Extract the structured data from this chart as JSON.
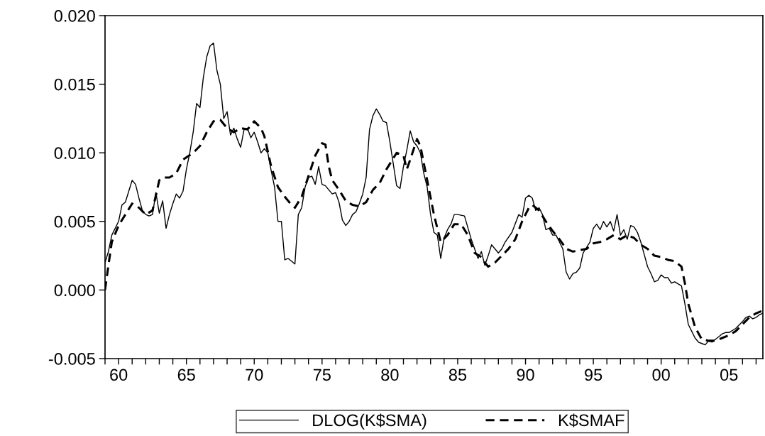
{
  "chart_data": {
    "type": "line",
    "xlim": [
      1959.0,
      2007.5
    ],
    "ylim": [
      -0.005,
      0.02
    ],
    "xticks": [
      {
        "value": 1959,
        "label": null
      },
      {
        "value": 1960,
        "label": "60"
      },
      {
        "value": 1961,
        "label": null
      },
      {
        "value": 1962,
        "label": null
      },
      {
        "value": 1963,
        "label": null
      },
      {
        "value": 1964,
        "label": null
      },
      {
        "value": 1965,
        "label": "65"
      },
      {
        "value": 1966,
        "label": null
      },
      {
        "value": 1967,
        "label": null
      },
      {
        "value": 1968,
        "label": null
      },
      {
        "value": 1969,
        "label": null
      },
      {
        "value": 1970,
        "label": "70"
      },
      {
        "value": 1971,
        "label": null
      },
      {
        "value": 1972,
        "label": null
      },
      {
        "value": 1973,
        "label": null
      },
      {
        "value": 1974,
        "label": null
      },
      {
        "value": 1975,
        "label": "75"
      },
      {
        "value": 1976,
        "label": null
      },
      {
        "value": 1977,
        "label": null
      },
      {
        "value": 1978,
        "label": null
      },
      {
        "value": 1979,
        "label": null
      },
      {
        "value": 1980,
        "label": "80"
      },
      {
        "value": 1981,
        "label": null
      },
      {
        "value": 1982,
        "label": null
      },
      {
        "value": 1983,
        "label": null
      },
      {
        "value": 1984,
        "label": null
      },
      {
        "value": 1985,
        "label": "85"
      },
      {
        "value": 1986,
        "label": null
      },
      {
        "value": 1987,
        "label": null
      },
      {
        "value": 1988,
        "label": null
      },
      {
        "value": 1989,
        "label": null
      },
      {
        "value": 1990,
        "label": "90"
      },
      {
        "value": 1991,
        "label": null
      },
      {
        "value": 1992,
        "label": null
      },
      {
        "value": 1993,
        "label": null
      },
      {
        "value": 1994,
        "label": null
      },
      {
        "value": 1995,
        "label": "95"
      },
      {
        "value": 1996,
        "label": null
      },
      {
        "value": 1997,
        "label": null
      },
      {
        "value": 1998,
        "label": null
      },
      {
        "value": 1999,
        "label": null
      },
      {
        "value": 2000,
        "label": "00"
      },
      {
        "value": 2001,
        "label": null
      },
      {
        "value": 2002,
        "label": null
      },
      {
        "value": 2003,
        "label": null
      },
      {
        "value": 2004,
        "label": null
      },
      {
        "value": 2005,
        "label": "05"
      },
      {
        "value": 2006,
        "label": null
      },
      {
        "value": 2007,
        "label": null
      }
    ],
    "yticks": [
      {
        "value": -0.005,
        "label": "-0.005"
      },
      {
        "value": 0.0,
        "label": "0.000"
      },
      {
        "value": 0.005,
        "label": "0.005"
      },
      {
        "value": 0.01,
        "label": "0.010"
      },
      {
        "value": 0.015,
        "label": "0.015"
      },
      {
        "value": 0.02,
        "label": "0.020"
      }
    ],
    "grid": false,
    "legend": "bottom",
    "marker": "none",
    "series": [
      {
        "name": "DLOG(K$SMA)",
        "color": "#000000",
        "line_style": "solid",
        "x": [
          1959.0,
          1959.25,
          1959.5,
          1960.0,
          1960.25,
          1960.5,
          1960.75,
          1961.0,
          1961.25,
          1961.5,
          1961.75,
          1962.0,
          1962.25,
          1962.5,
          1962.75,
          1963.0,
          1963.25,
          1963.5,
          1963.75,
          1964.0,
          1964.25,
          1964.5,
          1964.75,
          1965.0,
          1965.25,
          1965.5,
          1965.75,
          1966.0,
          1966.25,
          1966.5,
          1966.75,
          1967.0,
          1967.25,
          1967.5,
          1967.75,
          1968.0,
          1968.25,
          1968.5,
          1968.75,
          1969.0,
          1969.25,
          1969.5,
          1969.75,
          1970.0,
          1970.25,
          1970.5,
          1970.75,
          1971.0,
          1971.25,
          1971.5,
          1971.75,
          1972.0,
          1972.25,
          1972.5,
          1972.75,
          1973.0,
          1973.25,
          1973.5,
          1973.75,
          1974.0,
          1974.25,
          1974.5,
          1974.75,
          1975.0,
          1975.25,
          1975.5,
          1975.75,
          1976.0,
          1976.25,
          1976.5,
          1976.75,
          1977.0,
          1977.25,
          1977.5,
          1977.75,
          1978.0,
          1978.25,
          1978.5,
          1978.75,
          1979.0,
          1979.25,
          1979.5,
          1979.75,
          1980.0,
          1980.25,
          1980.5,
          1980.75,
          1981.0,
          1981.25,
          1981.5,
          1981.75,
          1982.0,
          1982.25,
          1982.5,
          1982.75,
          1983.0,
          1983.25,
          1983.5,
          1983.75,
          1984.0,
          1984.25,
          1984.5,
          1984.75,
          1985.0,
          1985.5,
          1986.0,
          1986.25,
          1986.5,
          1986.75,
          1987.0,
          1987.25,
          1987.5,
          1987.75,
          1988.0,
          1988.25,
          1988.5,
          1989.0,
          1989.5,
          1989.75,
          1990.0,
          1990.25,
          1990.5,
          1990.75,
          1991.0,
          1991.25,
          1991.5,
          1991.75,
          1992.0,
          1992.25,
          1992.5,
          1992.75,
          1993.0,
          1993.25,
          1993.5,
          1993.75,
          1994.0,
          1994.25,
          1994.5,
          1994.75,
          1995.0,
          1995.25,
          1995.5,
          1995.75,
          1996.0,
          1996.25,
          1996.5,
          1996.75,
          1997.0,
          1997.25,
          1997.5,
          1997.75,
          1998.0,
          1998.25,
          1998.5,
          1998.75,
          1999.0,
          1999.25,
          1999.5,
          1999.75,
          2000.0,
          2000.25,
          2000.5,
          2000.75,
          2001.0,
          2001.5,
          2001.75,
          2002.0,
          2002.25,
          2002.5,
          2002.75,
          2003.0,
          2003.25,
          2003.5,
          2003.75,
          2004.0,
          2004.5,
          2004.75,
          2005.0,
          2005.5,
          2006.0,
          2006.25,
          2006.5,
          2006.75,
          2007.0,
          2007.25,
          2007.5
        ],
        "values": [
          0.002,
          0.0028,
          0.004,
          0.005,
          0.0062,
          0.0064,
          0.0072,
          0.008,
          0.0077,
          0.0067,
          0.0058,
          0.0055,
          0.0054,
          0.0055,
          0.0071,
          0.0056,
          0.0065,
          0.0045,
          0.0055,
          0.0063,
          0.007,
          0.0067,
          0.0072,
          0.0088,
          0.01,
          0.0115,
          0.0136,
          0.0133,
          0.0155,
          0.017,
          0.0178,
          0.018,
          0.016,
          0.015,
          0.0125,
          0.013,
          0.0113,
          0.0118,
          0.011,
          0.0104,
          0.0117,
          0.0118,
          0.0111,
          0.0115,
          0.0108,
          0.01,
          0.0103,
          0.01,
          0.0087,
          0.0075,
          0.005,
          0.005,
          0.0022,
          0.0023,
          0.0021,
          0.0019,
          0.0055,
          0.006,
          0.0075,
          0.0082,
          0.0083,
          0.0077,
          0.009,
          0.0077,
          0.0076,
          0.0073,
          0.007,
          0.0071,
          0.0064,
          0.0051,
          0.0047,
          0.005,
          0.0055,
          0.0057,
          0.0063,
          0.007,
          0.0082,
          0.0117,
          0.0127,
          0.0132,
          0.0128,
          0.0123,
          0.0122,
          0.0108,
          0.0092,
          0.0076,
          0.0074,
          0.009,
          0.0102,
          0.0116,
          0.0108,
          0.0105,
          0.01,
          0.0085,
          0.0075,
          0.0055,
          0.0042,
          0.004,
          0.0023,
          0.0038,
          0.0044,
          0.0048,
          0.0055,
          0.0055,
          0.0054,
          0.0037,
          0.003,
          0.0023,
          0.0028,
          0.0018,
          0.0025,
          0.0033,
          0.003,
          0.0027,
          0.003,
          0.0035,
          0.0042,
          0.0055,
          0.0053,
          0.0067,
          0.0069,
          0.0067,
          0.0058,
          0.006,
          0.0055,
          0.0044,
          0.0045,
          0.004,
          0.004,
          0.0035,
          0.003,
          0.0013,
          0.0008,
          0.0012,
          0.0013,
          0.0016,
          0.0027,
          0.0031,
          0.0035,
          0.0045,
          0.0048,
          0.0044,
          0.005,
          0.0046,
          0.005,
          0.0043,
          0.0055,
          0.004,
          0.0044,
          0.0037,
          0.0047,
          0.0046,
          0.0042,
          0.0035,
          0.0026,
          0.0017,
          0.0012,
          0.0006,
          0.0007,
          0.0011,
          0.0009,
          0.0009,
          0.0005,
          0.0006,
          0.0003,
          -0.001,
          -0.0025,
          -0.003,
          -0.0035,
          -0.0038,
          -0.0039,
          -0.004,
          -0.0037,
          -0.0038,
          -0.0036,
          -0.0032,
          -0.0031,
          -0.0031,
          -0.0028,
          -0.0023,
          -0.002,
          -0.0019,
          -0.0021,
          -0.002,
          -0.0018,
          -0.0017
        ]
      },
      {
        "name": "K$SMAF",
        "color": "#000000",
        "line_style": "dashed",
        "x": [
          1959.0,
          1959.25,
          1959.5,
          1960.0,
          1960.5,
          1961.0,
          1961.5,
          1962.0,
          1962.5,
          1963.0,
          1963.25,
          1963.75,
          1964.25,
          1964.75,
          1965.5,
          1966.0,
          1966.5,
          1967.0,
          1967.5,
          1968.0,
          1968.5,
          1969.0,
          1969.5,
          1970.0,
          1970.5,
          1970.75,
          1971.25,
          1971.75,
          1972.25,
          1972.75,
          1973.0,
          1973.5,
          1974.0,
          1974.5,
          1975.0,
          1975.25,
          1975.5,
          1975.75,
          1976.25,
          1976.75,
          1977.25,
          1977.75,
          1978.25,
          1978.75,
          1979.25,
          1979.75,
          1980.25,
          1980.5,
          1981.0,
          1981.25,
          1981.5,
          1982.0,
          1982.25,
          1982.75,
          1983.25,
          1983.75,
          1984.25,
          1984.75,
          1985.25,
          1985.75,
          1986.25,
          1986.75,
          1987.0,
          1987.25,
          1987.75,
          1988.25,
          1988.75,
          1989.25,
          1989.75,
          1990.25,
          1990.5,
          1991.0,
          1991.5,
          1992.0,
          1992.5,
          1993.0,
          1993.5,
          1994.0,
          1994.5,
          1995.0,
          1995.5,
          1996.0,
          1996.5,
          1997.0,
          1997.5,
          1998.0,
          1998.5,
          1999.0,
          1999.5,
          2000.0,
          2000.5,
          2001.0,
          2001.5,
          2001.75,
          2002.0,
          2002.5,
          2003.0,
          2003.5,
          2004.0,
          2004.5,
          2005.0,
          2005.5,
          2006.0,
          2006.5,
          2007.0,
          2007.25,
          2007.5
        ],
        "values": [
          0.0,
          0.0018,
          0.0035,
          0.0047,
          0.0055,
          0.0063,
          0.006,
          0.0055,
          0.0058,
          0.008,
          0.0082,
          0.0082,
          0.0085,
          0.0095,
          0.01,
          0.0105,
          0.0115,
          0.0123,
          0.0124,
          0.0118,
          0.0115,
          0.0118,
          0.0117,
          0.0123,
          0.0118,
          0.0112,
          0.009,
          0.0075,
          0.0068,
          0.0062,
          0.006,
          0.0068,
          0.0083,
          0.0098,
          0.0107,
          0.0106,
          0.009,
          0.008,
          0.0073,
          0.0065,
          0.0062,
          0.0061,
          0.0064,
          0.0073,
          0.0078,
          0.0088,
          0.0096,
          0.01,
          0.0098,
          0.0088,
          0.0095,
          0.011,
          0.0105,
          0.008,
          0.0055,
          0.0035,
          0.004,
          0.0048,
          0.0048,
          0.004,
          0.0027,
          0.0024,
          0.002,
          0.0017,
          0.002,
          0.0025,
          0.003,
          0.0037,
          0.005,
          0.006,
          0.0062,
          0.0058,
          0.005,
          0.0043,
          0.0037,
          0.003,
          0.0028,
          0.0029,
          0.003,
          0.0034,
          0.0035,
          0.0037,
          0.004,
          0.0037,
          0.004,
          0.0038,
          0.0033,
          0.003,
          0.0025,
          0.0024,
          0.0022,
          0.0021,
          0.0017,
          0.0005,
          -0.001,
          -0.0027,
          -0.0036,
          -0.0037,
          -0.0037,
          -0.0035,
          -0.0033,
          -0.003,
          -0.0025,
          -0.002,
          -0.0017,
          -0.0016,
          -0.0015
        ]
      }
    ]
  }
}
